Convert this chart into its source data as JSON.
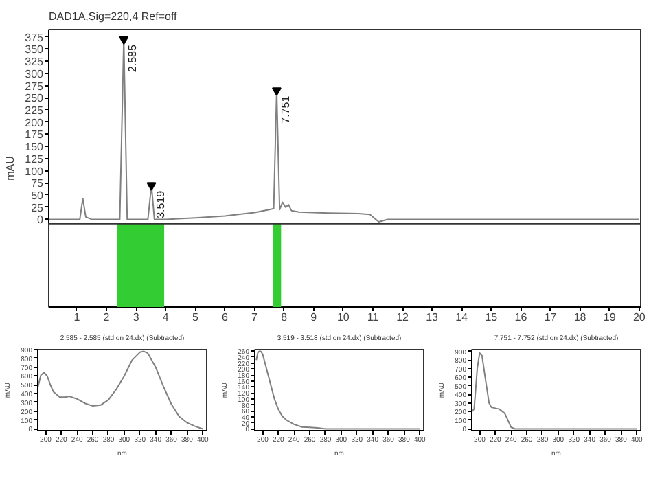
{
  "chart_data": [
    {
      "type": "line",
      "title": "DAD1A,Sig=220,4  Ref=off",
      "ylabel": "mAU",
      "color": "#808080",
      "x": [
        0.05,
        1.1,
        1.2,
        1.3,
        1.5,
        2.45,
        2.585,
        2.7,
        3.4,
        3.519,
        3.62,
        4.0,
        5.0,
        6.0,
        7.0,
        7.5,
        7.65,
        7.751,
        7.85,
        7.95,
        8.05,
        8.15,
        8.25,
        8.5,
        9.5,
        10.5,
        10.9,
        11.2,
        11.5,
        12.0,
        20.0
      ],
      "values": [
        0,
        0,
        43,
        5,
        0,
        0,
        370,
        0,
        0,
        70,
        0,
        0,
        3,
        7,
        14,
        20,
        22,
        265,
        20,
        35,
        25,
        30,
        18,
        15,
        13,
        12,
        10,
        -5,
        0,
        0,
        0
      ],
      "xlim": [
        0.05,
        20.05
      ],
      "ylim": [
        -180,
        390
      ],
      "ref_lines": [
        {
          "axis": "y",
          "value": -9,
          "color": "#333333"
        }
      ],
      "xticks": [
        1,
        2,
        3,
        4,
        5,
        6,
        7,
        8,
        9,
        10,
        11,
        12,
        13,
        14,
        15,
        16,
        17,
        18,
        19,
        20
      ],
      "yticks": [
        0,
        25,
        50,
        75,
        100,
        125,
        150,
        175,
        200,
        225,
        250,
        275,
        300,
        325,
        350,
        375
      ],
      "annotations": [
        {
          "text": "2.585",
          "x": 2.585,
          "y": 370
        },
        {
          "text": "3.519",
          "x": 3.519,
          "y": 70
        },
        {
          "text": "7.751",
          "x": 7.751,
          "y": 265
        }
      ],
      "bands": [
        {
          "axis": "x",
          "from": 2.35,
          "to": 3.95,
          "color": "#33cc33"
        },
        {
          "axis": "x",
          "from": 7.62,
          "to": 7.9,
          "color": "#33cc33"
        }
      ]
    },
    {
      "type": "line",
      "title": "2.585 - 2.585 (std on 24.dx) (Subtracted)",
      "xlabel": "nm",
      "ylabel": "mAU",
      "color": "#808080",
      "x": [
        190,
        194,
        198,
        202,
        206,
        210,
        218,
        225,
        230,
        240,
        250,
        260,
        270,
        280,
        290,
        300,
        310,
        320,
        325,
        330,
        340,
        350,
        360,
        370,
        380,
        390,
        400
      ],
      "values": [
        470,
        610,
        640,
        600,
        500,
        420,
        360,
        360,
        370,
        340,
        290,
        260,
        270,
        330,
        450,
        600,
        780,
        870,
        880,
        860,
        700,
        480,
        280,
        140,
        70,
        30,
        0
      ],
      "xlim": [
        190,
        405
      ],
      "ylim": [
        -20,
        900
      ],
      "xticks": [
        200,
        220,
        240,
        260,
        280,
        300,
        320,
        340,
        360,
        380,
        400
      ],
      "yticks": [
        0,
        100,
        200,
        300,
        400,
        500,
        600,
        700,
        800,
        900
      ]
    },
    {
      "type": "line",
      "title": "3.519 - 3.518 (std on 24.dx) (Subtracted)",
      "xlabel": "nm",
      "ylabel": "mAU",
      "color": "#808080",
      "x": [
        192,
        194,
        196,
        198,
        200,
        205,
        210,
        215,
        220,
        225,
        230,
        240,
        250,
        260,
        270,
        280,
        300,
        400
      ],
      "values": [
        230,
        255,
        260,
        258,
        250,
        200,
        150,
        100,
        65,
        42,
        30,
        15,
        6,
        5,
        3,
        0,
        0,
        0
      ],
      "xlim": [
        190,
        405
      ],
      "ylim": [
        -6,
        265
      ],
      "xticks": [
        200,
        220,
        240,
        260,
        280,
        300,
        320,
        340,
        360,
        380,
        400
      ],
      "yticks": [
        0,
        20,
        40,
        60,
        80,
        100,
        120,
        140,
        160,
        180,
        200,
        220,
        240,
        260
      ]
    },
    {
      "type": "line",
      "title": "7.751 - 7.752 (std on 24.dx) (Subtracted)",
      "xlabel": "nm",
      "ylabel": "mAU",
      "color": "#808080",
      "x": [
        190,
        193,
        197,
        200,
        203,
        207,
        212,
        215,
        225,
        232,
        237,
        240,
        245,
        260,
        300,
        400
      ],
      "values": [
        200,
        230,
        700,
        880,
        850,
        600,
        300,
        250,
        230,
        180,
        80,
        20,
        0,
        0,
        0,
        0
      ],
      "xlim": [
        190,
        405
      ],
      "ylim": [
        -20,
        920
      ],
      "xticks": [
        200,
        220,
        240,
        260,
        280,
        300,
        320,
        340,
        360,
        380,
        400
      ],
      "yticks": [
        0,
        100,
        200,
        300,
        400,
        500,
        600,
        700,
        800,
        900
      ]
    }
  ]
}
